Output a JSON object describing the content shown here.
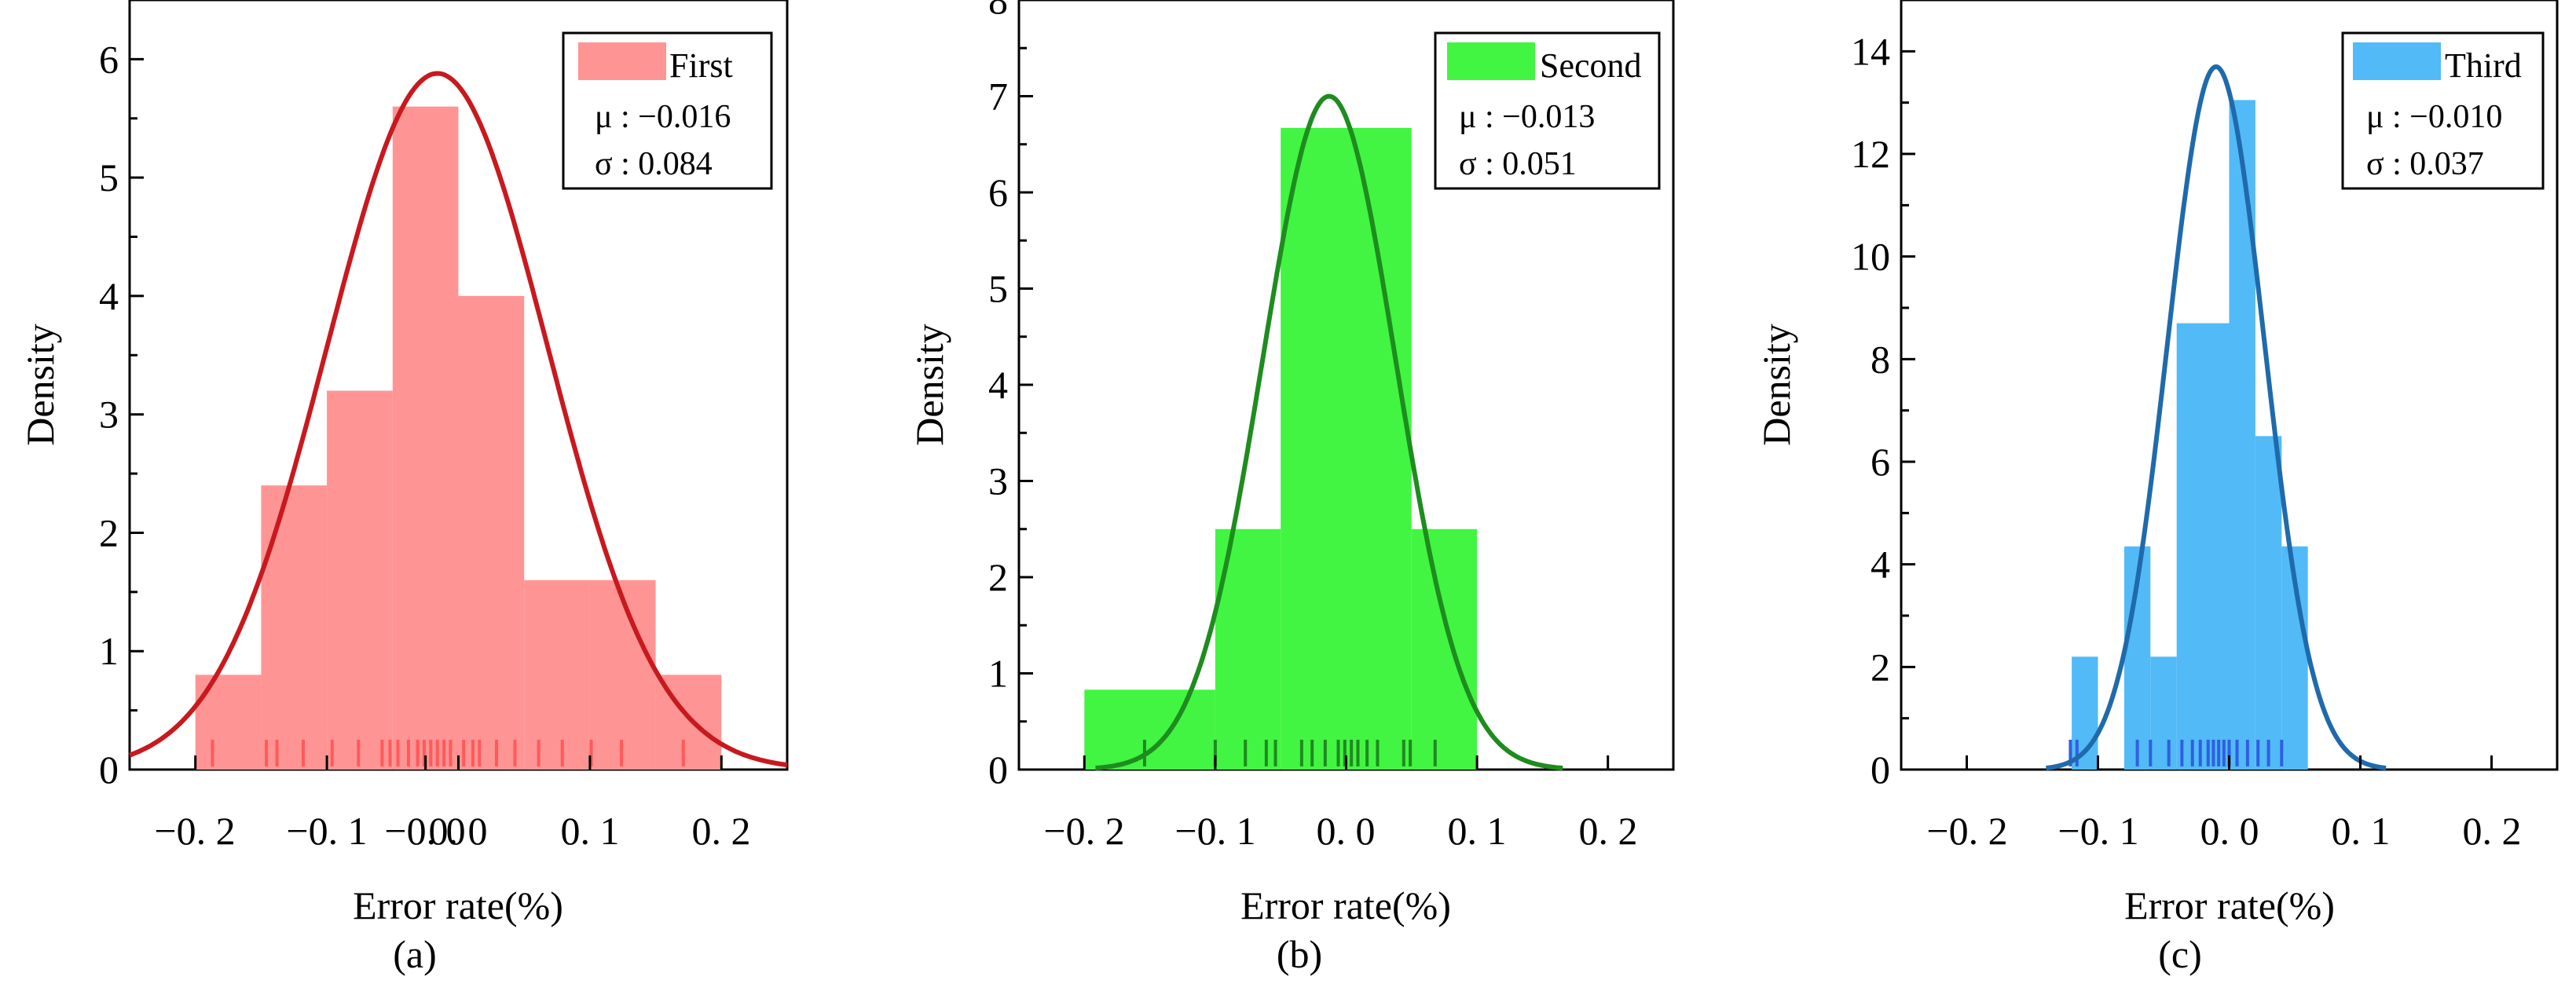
{
  "colors": {
    "axis": "#000000",
    "legend_border": "#000000"
  },
  "panels": [
    {
      "caption": "(a)",
      "xlabel": "Error rate(%)",
      "ylabel": "Density",
      "xticks": [
        "−0. 2",
        "−0. 1",
        "−0. 0",
        "0. 0",
        "0. 1",
        "0. 2"
      ],
      "legend": {
        "label": "First",
        "mu_text": "μ  : −0.016",
        "sigma_text": "σ  : 0.084"
      }
    },
    {
      "caption": "(b)",
      "xlabel": "Error rate(%)",
      "ylabel": "Density",
      "xticks": [
        "−0. 2",
        "−0. 1",
        "0. 0",
        "0. 1",
        "0. 2"
      ],
      "legend": {
        "label": "Second",
        "mu_text": "μ  : −0.013",
        "sigma_text": "σ  : 0.051"
      }
    },
    {
      "caption": "(c)",
      "xlabel": "Error rate(%)",
      "ylabel": "Density",
      "xticks": [
        "−0. 2",
        "−0. 1",
        "0. 0",
        "0. 1",
        "0. 2"
      ],
      "legend": {
        "label": "Third",
        "mu_text": "μ  : −0.010",
        "sigma_text": "σ  : 0.037"
      }
    }
  ],
  "chart_data": [
    {
      "type": "bar",
      "subtype": "histogram_with_normal_fit",
      "xlim": [
        -0.25,
        0.25
      ],
      "ylim": [
        0,
        6.5
      ],
      "yticks": [
        0,
        1,
        2,
        3,
        4,
        5,
        6
      ],
      "xtick_values": [
        -0.2,
        -0.1,
        -0.025,
        0.0,
        0.1,
        0.2
      ],
      "bar_color": "#ff9494",
      "curve_color": "#c8191e",
      "rug_color": "#ff5a5a",
      "bins": [
        {
          "start": -0.2,
          "end": -0.15,
          "density": 0.8
        },
        {
          "start": -0.15,
          "end": -0.1,
          "density": 2.4
        },
        {
          "start": -0.1,
          "end": -0.05,
          "density": 3.2
        },
        {
          "start": -0.05,
          "end": 0.0,
          "density": 5.6
        },
        {
          "start": 0.0,
          "end": 0.05,
          "density": 4.0
        },
        {
          "start": 0.05,
          "end": 0.1,
          "density": 1.6
        },
        {
          "start": 0.1,
          "end": 0.15,
          "density": 1.6
        },
        {
          "start": 0.15,
          "end": 0.2,
          "density": 0.8
        }
      ],
      "fit": {
        "mu": -0.016,
        "sigma": 0.084,
        "peak": 5.88
      },
      "rug": [
        -0.187,
        -0.146,
        -0.138,
        -0.118,
        -0.096,
        -0.076,
        -0.058,
        -0.052,
        -0.046,
        -0.038,
        -0.031,
        -0.026,
        -0.021,
        -0.016,
        -0.011,
        -0.006,
        0.004,
        0.011,
        0.016,
        0.029,
        0.043,
        0.061,
        0.079,
        0.101,
        0.124,
        0.171
      ]
    },
    {
      "type": "bar",
      "subtype": "histogram_with_normal_fit",
      "xlim": [
        -0.25,
        0.25
      ],
      "ylim": [
        0,
        8
      ],
      "yticks": [
        0,
        1,
        2,
        3,
        4,
        5,
        6,
        7,
        8
      ],
      "xtick_values": [
        -0.2,
        -0.1,
        0.0,
        0.1,
        0.2
      ],
      "bar_color": "#42f542",
      "curve_color": "#1e8c1e",
      "rug_color": "#1f8a1f",
      "bins": [
        {
          "start": -0.2,
          "end": -0.1,
          "density": 0.83
        },
        {
          "start": -0.1,
          "end": -0.05,
          "density": 2.5
        },
        {
          "start": -0.05,
          "end": 0.05,
          "density": 6.67
        },
        {
          "start": 0.05,
          "end": 0.1,
          "density": 2.5
        }
      ],
      "fit": {
        "mu": -0.013,
        "sigma": 0.051,
        "peak": 7.0
      },
      "rug": [
        -0.154,
        -0.1,
        -0.077,
        -0.061,
        -0.054,
        -0.034,
        -0.026,
        -0.016,
        -0.006,
        -0.001,
        0.004,
        0.009,
        0.016,
        0.024,
        0.044,
        0.049,
        0.068
      ]
    },
    {
      "type": "bar",
      "subtype": "histogram_with_normal_fit",
      "xlim": [
        -0.25,
        0.25
      ],
      "ylim": [
        0,
        15
      ],
      "yticks": [
        0,
        2,
        4,
        6,
        8,
        10,
        12,
        14
      ],
      "xtick_values": [
        -0.2,
        -0.1,
        0.0,
        0.1,
        0.2
      ],
      "bar_color": "#52baf7",
      "curve_color": "#1f6aab",
      "rug_color": "#2f5fe0",
      "bins": [
        {
          "start": -0.12,
          "end": -0.1,
          "density": 2.2
        },
        {
          "start": -0.08,
          "end": -0.06,
          "density": 4.35
        },
        {
          "start": -0.06,
          "end": -0.04,
          "density": 2.2
        },
        {
          "start": -0.04,
          "end": 0.0,
          "density": 8.7
        },
        {
          "start": 0.0,
          "end": 0.02,
          "density": 13.05
        },
        {
          "start": 0.02,
          "end": 0.04,
          "density": 6.5
        },
        {
          "start": 0.04,
          "end": 0.06,
          "density": 4.35
        }
      ],
      "fit": {
        "mu": -0.01,
        "sigma": 0.037,
        "peak": 13.7
      },
      "rug": [
        -0.121,
        -0.116,
        -0.07,
        -0.06,
        -0.046,
        -0.036,
        -0.028,
        -0.022,
        -0.016,
        -0.012,
        -0.008,
        -0.004,
        0.0,
        0.006,
        0.014,
        0.022,
        0.03,
        0.04
      ]
    }
  ]
}
